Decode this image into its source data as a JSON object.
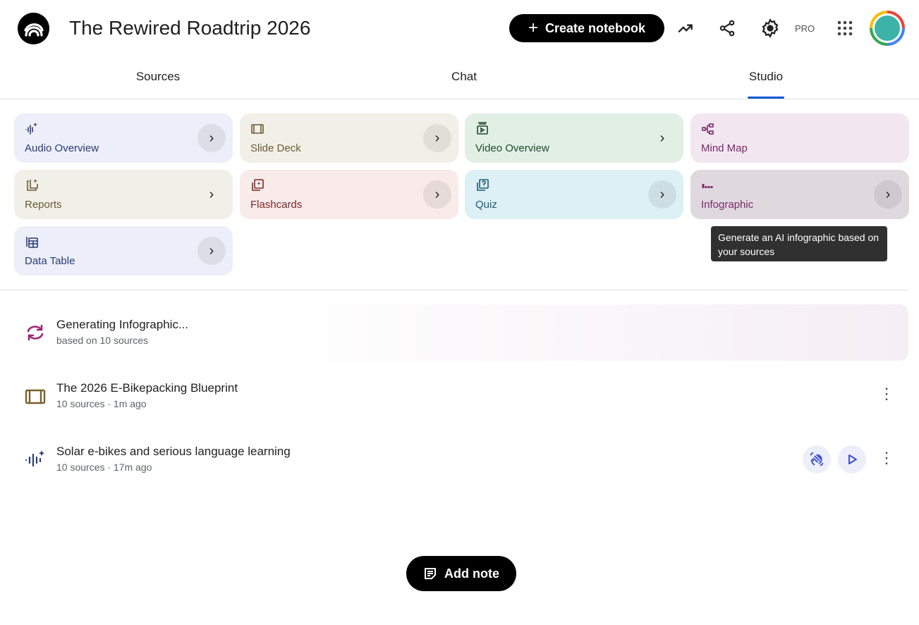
{
  "header": {
    "title": "The Rewired Roadtrip 2026",
    "create_label": "Create notebook",
    "pro_label": "PRO",
    "icons": [
      "analytics-icon",
      "share-icon",
      "settings-icon",
      "apps-icon"
    ]
  },
  "tabs": [
    {
      "label": "Sources"
    },
    {
      "label": "Chat"
    },
    {
      "label": "Studio",
      "active": true
    }
  ],
  "studio": {
    "tools": [
      {
        "label": "Audio Overview",
        "icon": "audio-sparkle-icon",
        "bg": "#eceff9",
        "color": "#2b3c74"
      },
      {
        "label": "Slide Deck",
        "icon": "slides-icon",
        "bg": "#f1f0e8",
        "color": "#6b5b35"
      },
      {
        "label": "Video Overview",
        "icon": "video-icon",
        "bg": "#e1efe5",
        "color": "#1f4a2c"
      },
      {
        "label": "Mind Map",
        "icon": "mind-map-icon",
        "bg": "#f2e7f0",
        "color": "#7a2a6a"
      },
      {
        "label": "Reports",
        "icon": "reports-icon",
        "bg": "#f1f0e8",
        "color": "#6b5b35"
      },
      {
        "label": "Flashcards",
        "icon": "flashcards-icon",
        "bg": "#f8ebea",
        "color": "#7a2a2a"
      },
      {
        "label": "Quiz",
        "icon": "quiz-icon",
        "bg": "#ddf0f6",
        "color": "#1d5a73"
      },
      {
        "label": "Infographic",
        "icon": "infographic-icon",
        "bg": "#e0d8df",
        "color": "#7a2a6a"
      },
      {
        "label": "Data Table",
        "icon": "table-icon",
        "bg": "#eceff9",
        "color": "#2b3c74"
      }
    ],
    "tooltip": "Generate an AI infographic based on your sources"
  },
  "outputs": [
    {
      "title": "Generating Infographic...",
      "sub": "based on 10 sources",
      "icon": "sync-icon"
    },
    {
      "title": "The 2026 E-Bikepacking Blueprint",
      "sub": "10 sources · 1m ago",
      "icon": "slides-icon"
    },
    {
      "title": "Solar e-bikes and serious language learning",
      "sub": "10 sources · 17m ago",
      "icon": "audio-sparkle-icon"
    }
  ],
  "add_note_label": "Add note"
}
